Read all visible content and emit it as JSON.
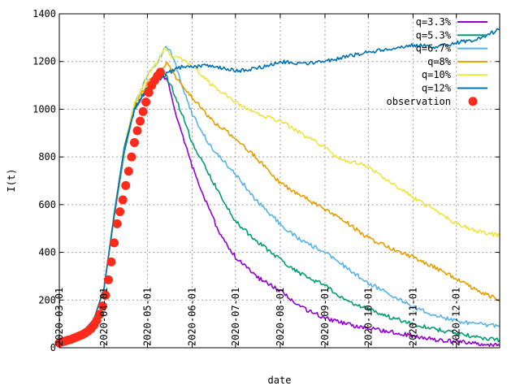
{
  "chart_data": {
    "type": "line",
    "title": "",
    "xlabel": "date",
    "ylabel": "I(t)",
    "xlim": [
      "2020-03-01",
      "2020-12-31"
    ],
    "ylim": [
      0,
      1400
    ],
    "grid": true,
    "legend_position": "top-right",
    "x_tick_labels": [
      "2020-03-01",
      "2020-04-01",
      "2020-05-01",
      "2020-06-01",
      "2020-07-01",
      "2020-08-01",
      "2020-09-01",
      "2020-10-01",
      "2020-11-01",
      "2020-12-01"
    ],
    "y_ticks": [
      0,
      200,
      400,
      600,
      800,
      1000,
      1200,
      1400
    ],
    "series": [
      {
        "name": "q=3.3%",
        "color": "#9400d3",
        "style": "line",
        "points": [
          [
            "2020-03-01",
            25
          ],
          [
            "2020-03-15",
            50
          ],
          [
            "2020-03-25",
            120
          ],
          [
            "2020-04-01",
            250
          ],
          [
            "2020-04-08",
            550
          ],
          [
            "2020-04-15",
            820
          ],
          [
            "2020-04-22",
            1000
          ],
          [
            "2020-05-01",
            1080
          ],
          [
            "2020-05-08",
            1120
          ],
          [
            "2020-05-12",
            1135
          ],
          [
            "2020-05-15",
            1120
          ],
          [
            "2020-05-22",
            950
          ],
          [
            "2020-06-01",
            760
          ],
          [
            "2020-06-10",
            620
          ],
          [
            "2020-06-20",
            480
          ],
          [
            "2020-07-01",
            380
          ],
          [
            "2020-07-15",
            300
          ],
          [
            "2020-08-01",
            240
          ],
          [
            "2020-08-15",
            170
          ],
          [
            "2020-09-01",
            125
          ],
          [
            "2020-09-15",
            100
          ],
          [
            "2020-10-01",
            80
          ],
          [
            "2020-10-15",
            70
          ],
          [
            "2020-11-01",
            50
          ],
          [
            "2020-11-15",
            35
          ],
          [
            "2020-12-01",
            25
          ],
          [
            "2020-12-15",
            18
          ],
          [
            "2020-12-31",
            10
          ]
        ]
      },
      {
        "name": "q=5.3%",
        "color": "#009e73",
        "style": "line",
        "points": [
          [
            "2020-03-01",
            25
          ],
          [
            "2020-03-15",
            50
          ],
          [
            "2020-03-25",
            120
          ],
          [
            "2020-04-01",
            250
          ],
          [
            "2020-04-08",
            550
          ],
          [
            "2020-04-15",
            820
          ],
          [
            "2020-04-22",
            1000
          ],
          [
            "2020-05-01",
            1090
          ],
          [
            "2020-05-08",
            1130
          ],
          [
            "2020-05-13",
            1150
          ],
          [
            "2020-05-18",
            1090
          ],
          [
            "2020-05-25",
            980
          ],
          [
            "2020-06-01",
            860
          ],
          [
            "2020-06-15",
            700
          ],
          [
            "2020-07-01",
            530
          ],
          [
            "2020-07-15",
            450
          ],
          [
            "2020-08-01",
            370
          ],
          [
            "2020-08-15",
            310
          ],
          [
            "2020-09-01",
            260
          ],
          [
            "2020-09-15",
            200
          ],
          [
            "2020-10-01",
            160
          ],
          [
            "2020-10-15",
            130
          ],
          [
            "2020-11-01",
            100
          ],
          [
            "2020-11-15",
            80
          ],
          [
            "2020-12-01",
            60
          ],
          [
            "2020-12-15",
            45
          ],
          [
            "2020-12-31",
            32
          ]
        ]
      },
      {
        "name": "q=6.7%",
        "color": "#56b4e9",
        "style": "line",
        "points": [
          [
            "2020-03-01",
            25
          ],
          [
            "2020-03-15",
            50
          ],
          [
            "2020-03-25",
            120
          ],
          [
            "2020-04-01",
            250
          ],
          [
            "2020-04-08",
            560
          ],
          [
            "2020-04-15",
            840
          ],
          [
            "2020-04-22",
            1020
          ],
          [
            "2020-05-01",
            1140
          ],
          [
            "2020-05-08",
            1200
          ],
          [
            "2020-05-14",
            1265
          ],
          [
            "2020-05-18",
            1230
          ],
          [
            "2020-05-25",
            1100
          ],
          [
            "2020-06-01",
            980
          ],
          [
            "2020-06-15",
            830
          ],
          [
            "2020-07-01",
            730
          ],
          [
            "2020-07-15",
            620
          ],
          [
            "2020-08-01",
            520
          ],
          [
            "2020-08-15",
            450
          ],
          [
            "2020-09-01",
            400
          ],
          [
            "2020-09-15",
            340
          ],
          [
            "2020-10-01",
            270
          ],
          [
            "2020-10-15",
            230
          ],
          [
            "2020-11-01",
            170
          ],
          [
            "2020-11-15",
            140
          ],
          [
            "2020-12-01",
            110
          ],
          [
            "2020-12-15",
            100
          ],
          [
            "2020-12-31",
            90
          ]
        ]
      },
      {
        "name": "q=8%",
        "color": "#e69f00",
        "style": "line",
        "points": [
          [
            "2020-03-01",
            25
          ],
          [
            "2020-03-15",
            50
          ],
          [
            "2020-03-25",
            120
          ],
          [
            "2020-04-01",
            250
          ],
          [
            "2020-04-08",
            560
          ],
          [
            "2020-04-15",
            840
          ],
          [
            "2020-04-22",
            1020
          ],
          [
            "2020-05-01",
            1110
          ],
          [
            "2020-05-08",
            1150
          ],
          [
            "2020-05-15",
            1195
          ],
          [
            "2020-05-20",
            1140
          ],
          [
            "2020-06-01",
            1050
          ],
          [
            "2020-06-15",
            950
          ],
          [
            "2020-07-01",
            880
          ],
          [
            "2020-07-15",
            800
          ],
          [
            "2020-08-01",
            690
          ],
          [
            "2020-08-15",
            640
          ],
          [
            "2020-09-01",
            580
          ],
          [
            "2020-09-15",
            530
          ],
          [
            "2020-10-01",
            460
          ],
          [
            "2020-10-15",
            420
          ],
          [
            "2020-11-01",
            380
          ],
          [
            "2020-11-15",
            340
          ],
          [
            "2020-12-01",
            290
          ],
          [
            "2020-12-15",
            240
          ],
          [
            "2020-12-31",
            200
          ]
        ]
      },
      {
        "name": "q=10%",
        "color": "#f0e442",
        "style": "line",
        "points": [
          [
            "2020-03-01",
            25
          ],
          [
            "2020-03-15",
            50
          ],
          [
            "2020-03-25",
            120
          ],
          [
            "2020-04-01",
            250
          ],
          [
            "2020-04-08",
            560
          ],
          [
            "2020-04-15",
            840
          ],
          [
            "2020-04-22",
            1020
          ],
          [
            "2020-05-01",
            1140
          ],
          [
            "2020-05-08",
            1200
          ],
          [
            "2020-05-13",
            1255
          ],
          [
            "2020-05-18",
            1220
          ],
          [
            "2020-05-25",
            1210
          ],
          [
            "2020-06-01",
            1180
          ],
          [
            "2020-06-15",
            1100
          ],
          [
            "2020-07-01",
            1030
          ],
          [
            "2020-07-15",
            980
          ],
          [
            "2020-08-01",
            950
          ],
          [
            "2020-08-15",
            900
          ],
          [
            "2020-09-01",
            840
          ],
          [
            "2020-09-10",
            790
          ],
          [
            "2020-09-20",
            780
          ],
          [
            "2020-10-01",
            760
          ],
          [
            "2020-10-15",
            700
          ],
          [
            "2020-11-01",
            630
          ],
          [
            "2020-11-15",
            580
          ],
          [
            "2020-12-01",
            520
          ],
          [
            "2020-12-15",
            490
          ],
          [
            "2020-12-31",
            470
          ]
        ]
      },
      {
        "name": "q=12%",
        "color": "#0072b2",
        "style": "line",
        "points": [
          [
            "2020-03-01",
            25
          ],
          [
            "2020-03-15",
            50
          ],
          [
            "2020-03-25",
            120
          ],
          [
            "2020-04-01",
            250
          ],
          [
            "2020-04-08",
            560
          ],
          [
            "2020-04-15",
            840
          ],
          [
            "2020-04-22",
            1000
          ],
          [
            "2020-05-01",
            1090
          ],
          [
            "2020-05-08",
            1120
          ],
          [
            "2020-05-15",
            1150
          ],
          [
            "2020-05-22",
            1175
          ],
          [
            "2020-06-01",
            1180
          ],
          [
            "2020-06-15",
            1185
          ],
          [
            "2020-07-01",
            1160
          ],
          [
            "2020-07-15",
            1170
          ],
          [
            "2020-08-01",
            1200
          ],
          [
            "2020-08-15",
            1190
          ],
          [
            "2020-09-01",
            1200
          ],
          [
            "2020-09-15",
            1220
          ],
          [
            "2020-10-01",
            1240
          ],
          [
            "2020-10-15",
            1250
          ],
          [
            "2020-11-01",
            1270
          ],
          [
            "2020-11-15",
            1260
          ],
          [
            "2020-12-01",
            1280
          ],
          [
            "2020-12-15",
            1290
          ],
          [
            "2020-12-31",
            1335
          ]
        ]
      },
      {
        "name": "observation",
        "color": "#ff2a1a",
        "style": "points",
        "points": [
          [
            "2020-03-01",
            20
          ],
          [
            "2020-03-03",
            25
          ],
          [
            "2020-03-05",
            28
          ],
          [
            "2020-03-07",
            32
          ],
          [
            "2020-03-09",
            35
          ],
          [
            "2020-03-11",
            40
          ],
          [
            "2020-03-13",
            45
          ],
          [
            "2020-03-15",
            50
          ],
          [
            "2020-03-17",
            55
          ],
          [
            "2020-03-19",
            62
          ],
          [
            "2020-03-21",
            70
          ],
          [
            "2020-03-23",
            80
          ],
          [
            "2020-03-25",
            95
          ],
          [
            "2020-03-27",
            115
          ],
          [
            "2020-03-29",
            140
          ],
          [
            "2020-03-31",
            175
          ],
          [
            "2020-04-02",
            220
          ],
          [
            "2020-04-04",
            285
          ],
          [
            "2020-04-06",
            360
          ],
          [
            "2020-04-08",
            440
          ],
          [
            "2020-04-10",
            520
          ],
          [
            "2020-04-12",
            570
          ],
          [
            "2020-04-14",
            620
          ],
          [
            "2020-04-16",
            680
          ],
          [
            "2020-04-18",
            740
          ],
          [
            "2020-04-20",
            800
          ],
          [
            "2020-04-22",
            860
          ],
          [
            "2020-04-24",
            910
          ],
          [
            "2020-04-26",
            950
          ],
          [
            "2020-04-28",
            990
          ],
          [
            "2020-04-30",
            1030
          ],
          [
            "2020-05-02",
            1070
          ],
          [
            "2020-05-04",
            1100
          ],
          [
            "2020-05-06",
            1120
          ],
          [
            "2020-05-08",
            1140
          ],
          [
            "2020-05-10",
            1155
          ]
        ]
      }
    ]
  }
}
